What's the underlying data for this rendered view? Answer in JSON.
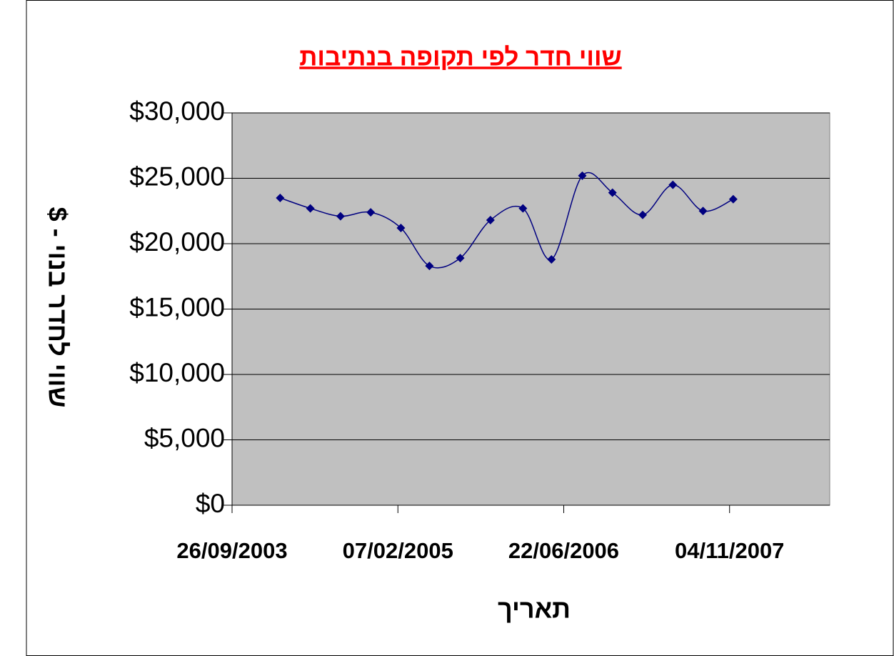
{
  "chart_data": {
    "type": "line",
    "title": "שווי חדר לפי תקופה בנתיבות",
    "x_label": "תאריך",
    "y_label": "שווי לחדר בנוי - $",
    "x": [
      "18/02/2004",
      "19/05/2004",
      "18/08/2004",
      "17/11/2004",
      "16/02/2005",
      "13/05/2005",
      "14/08/2005",
      "13/11/2005",
      "19/02/2006",
      "16/05/2006",
      "17/08/2006",
      "16/11/2006",
      "15/02/2007",
      "17/05/2007",
      "16/08/2007",
      "15/11/2007"
    ],
    "series": [
      {
        "color": "#000080",
        "values": [
          23500,
          22700,
          22100,
          22400,
          21200,
          18300,
          18900,
          21800,
          22700,
          18800,
          25200,
          23900,
          22200,
          24500,
          22500,
          23400
        ]
      }
    ],
    "xlim": [
      "26/09/2003",
      "01/09/2008"
    ],
    "xticks": [
      "26/09/2003",
      "07/02/2005",
      "22/06/2006",
      "04/11/2007"
    ],
    "ylim": [
      0,
      30000
    ],
    "yticks": [
      {
        "value": 0,
        "label": "$0"
      },
      {
        "value": 5000,
        "label": "$5,000"
      },
      {
        "value": 10000,
        "label": "$10,000"
      },
      {
        "value": 15000,
        "label": "$15,000"
      },
      {
        "value": 20000,
        "label": "$20,000"
      },
      {
        "value": 25000,
        "label": "$25,000"
      },
      {
        "value": 30000,
        "label": "$30,000"
      }
    ],
    "grid": true,
    "smooth": true,
    "plot_background": "#c0c0c0",
    "title_color": "#ff0000"
  }
}
